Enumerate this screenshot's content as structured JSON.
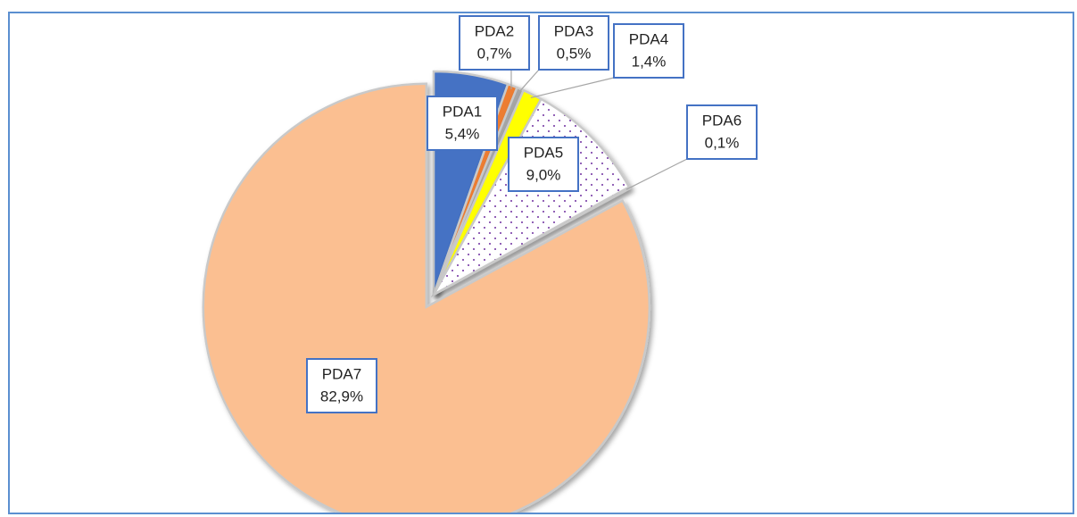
{
  "chart_data": {
    "type": "pie",
    "categories": [
      "PDA1",
      "PDA2",
      "PDA3",
      "PDA4",
      "PDA5",
      "PDA6",
      "PDA7"
    ],
    "values": [
      5.4,
      0.7,
      0.5,
      1.4,
      9.0,
      0.1,
      82.9
    ],
    "value_labels": [
      "5,4%",
      "0,7%",
      "0,5%",
      "1,4%",
      "9,0%",
      "0,1%",
      "82,9%"
    ],
    "colors": [
      "#4472c4",
      "#ed7d31",
      "#a5a5a5",
      "#ffff00",
      "#7030a0",
      "#5b9bd5",
      "#fbbf91"
    ],
    "patterns": [
      "solid",
      "solid",
      "solid",
      "solid",
      "dots",
      "solid",
      "solid"
    ]
  }
}
